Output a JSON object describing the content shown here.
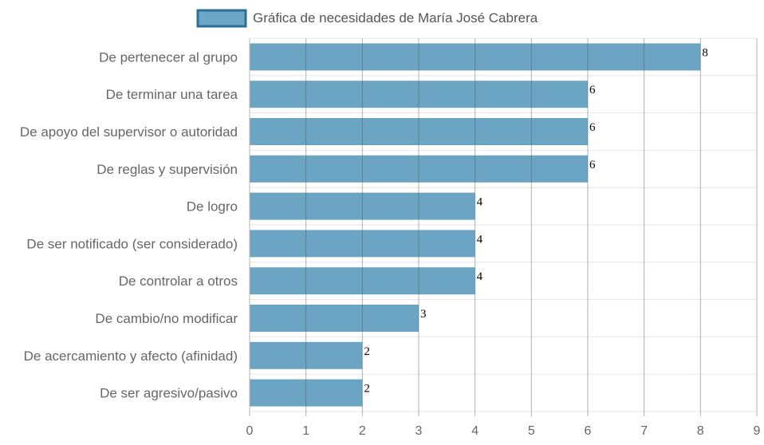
{
  "chart_data": {
    "type": "bar",
    "orientation": "horizontal",
    "legend": {
      "label": "Gráfica de necesidades de María José Cabrera",
      "position": "top",
      "swatch_fill": "#6ea6c5",
      "swatch_border": "#2b6f99"
    },
    "bar_color": "#6ca5c4",
    "grid": true,
    "categories": [
      "De pertenecer al grupo",
      "De terminar una tarea",
      "De apoyo del supervisor o autoridad",
      "De reglas y supervisión",
      "De logro",
      "De ser notificado (ser considerado)",
      "De controlar a otros",
      "De cambio/no modificar",
      "De acercamiento y afecto (afinidad)",
      "De ser agresivo/pasivo"
    ],
    "values": [
      8,
      6,
      6,
      6,
      4,
      4,
      4,
      3,
      2,
      2
    ],
    "xlim": [
      0,
      9
    ],
    "x_ticks": [
      "0",
      "1",
      "2",
      "3",
      "4",
      "5",
      "6",
      "7",
      "8",
      "9"
    ]
  }
}
